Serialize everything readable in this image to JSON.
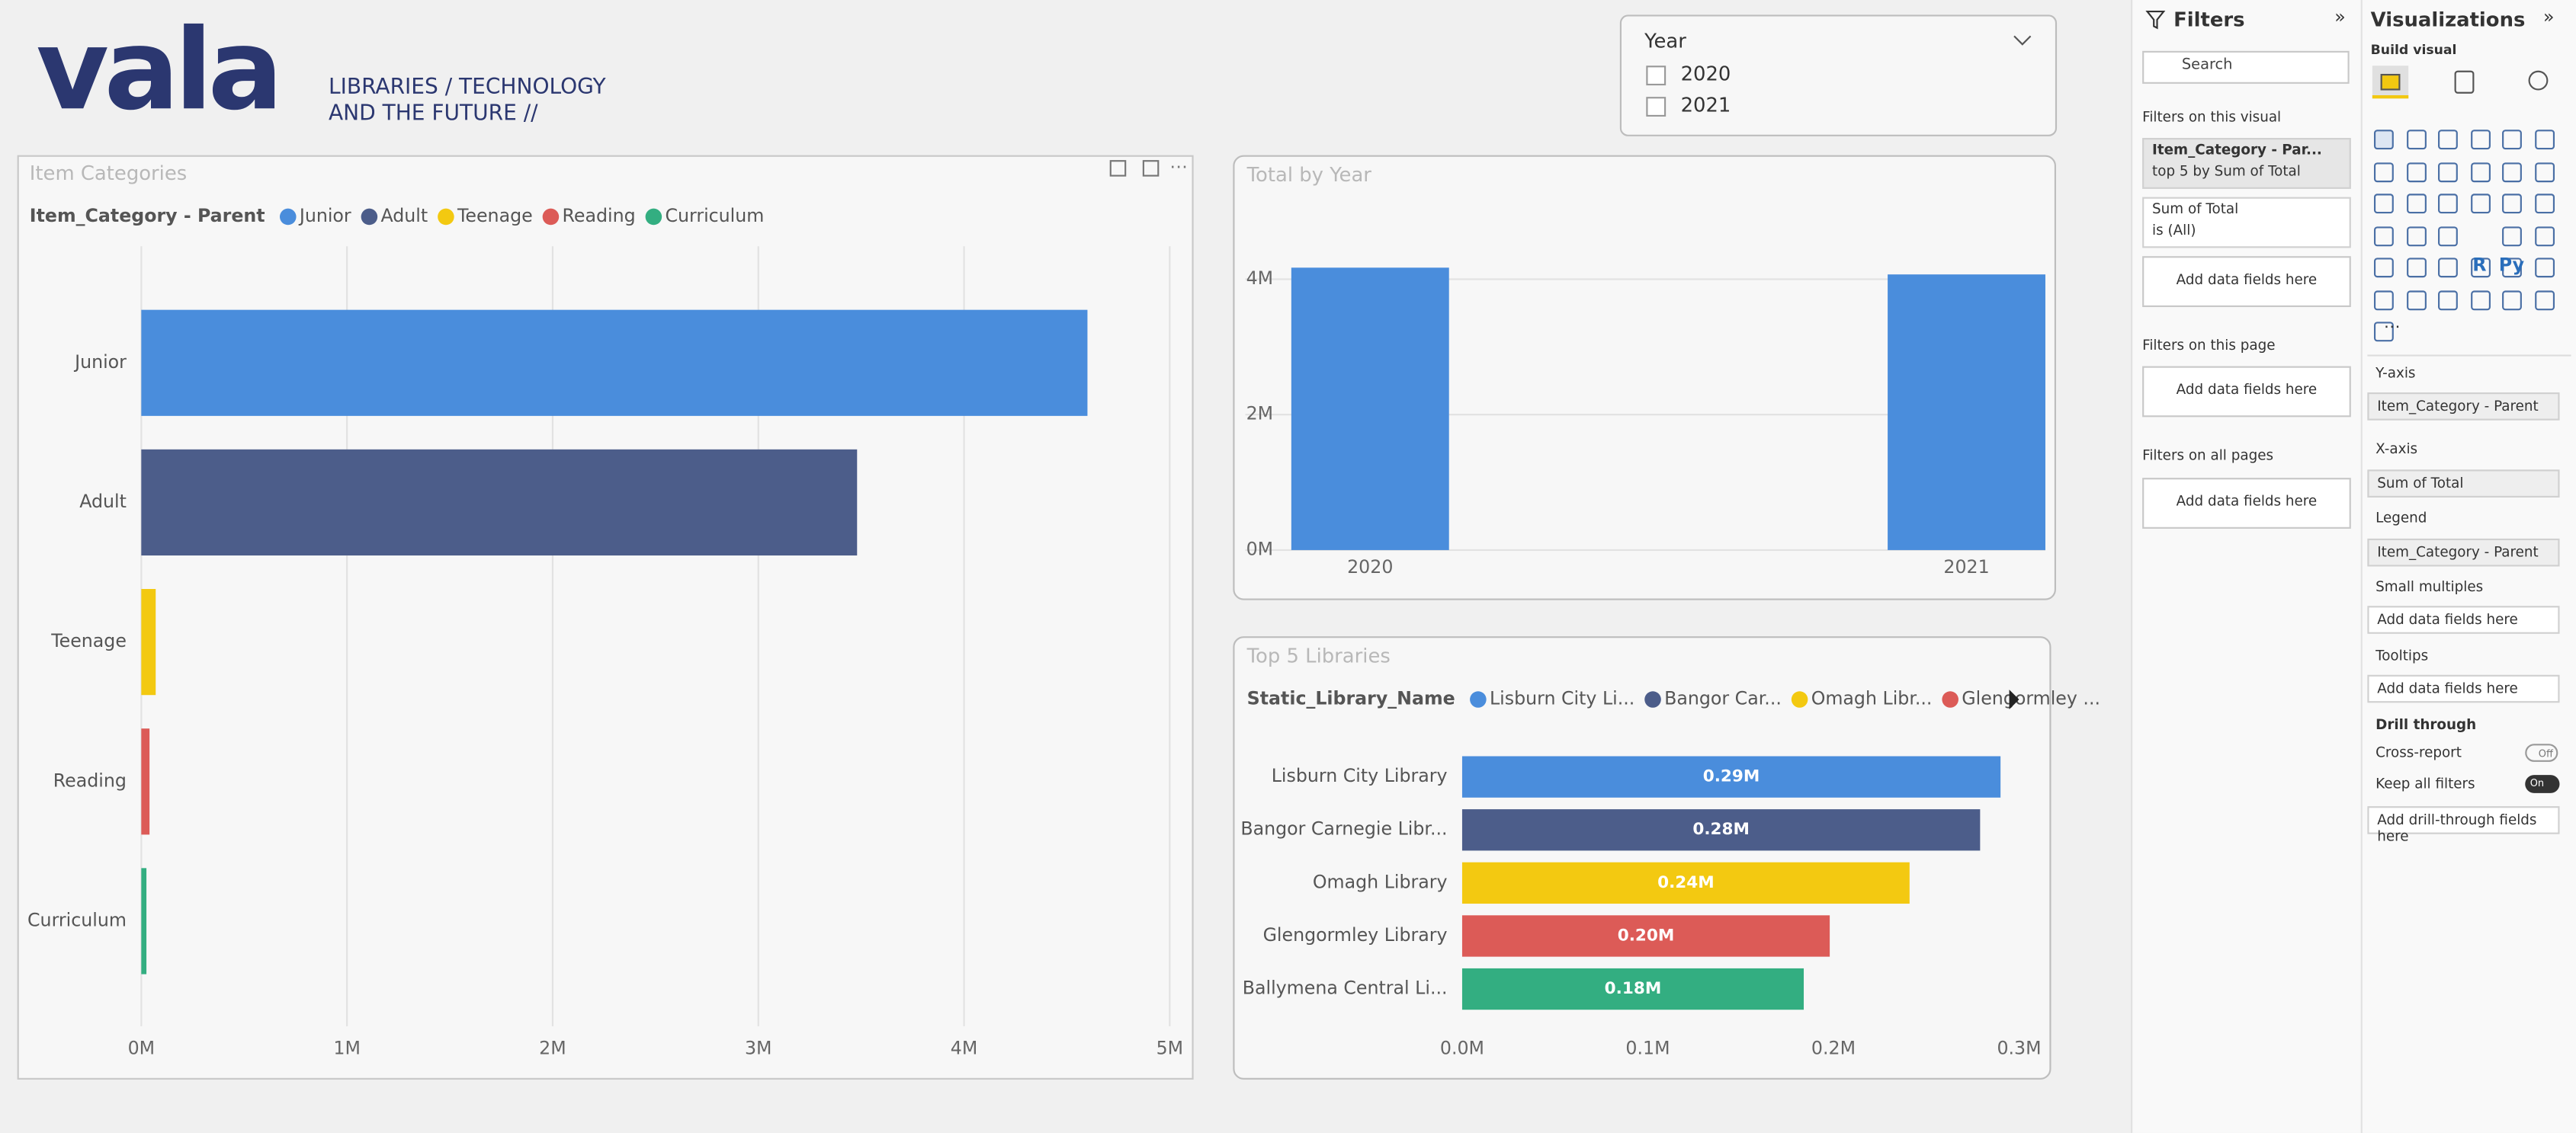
{
  "header": {
    "logo": "vala",
    "tagline_1": "LIBRARIES / TECHNOLOGY",
    "tagline_2": "AND THE FUTURE //"
  },
  "slicer": {
    "title": "Year",
    "options": [
      "2020",
      "2021"
    ]
  },
  "chart_data": [
    {
      "type": "hbar",
      "title": "Item Categories",
      "legend_title": "Item_Category - Parent",
      "categories": [
        "Junior",
        "Adult",
        "Teenage",
        "Reading",
        "Curriculum"
      ],
      "values": [
        4600000,
        3480000,
        70000,
        40000,
        25000
      ],
      "colors": [
        "#4a8ddc",
        "#4c5d8a",
        "#f3c911",
        "#dc5b57",
        "#33ae81"
      ],
      "xlim": [
        0,
        5000000
      ],
      "xticks": [
        {
          "value": 0,
          "label": "0M"
        },
        {
          "value": 1000000,
          "label": "1M"
        },
        {
          "value": 2000000,
          "label": "2M"
        },
        {
          "value": 3000000,
          "label": "3M"
        },
        {
          "value": 4000000,
          "label": "4M"
        },
        {
          "value": 5000000,
          "label": "5M"
        }
      ],
      "grid": true
    },
    {
      "type": "column",
      "title": "Total by Year",
      "categories": [
        "2020",
        "2021"
      ],
      "values": [
        4170000,
        4070000
      ],
      "color": "#4a8ddc",
      "ylim": [
        0,
        4500000
      ],
      "yticks": [
        {
          "value": 0,
          "label": "0M"
        },
        {
          "value": 2000000,
          "label": "2M"
        },
        {
          "value": 4000000,
          "label": "4M"
        }
      ],
      "grid": true
    },
    {
      "type": "hbar",
      "title": "Top 5 Libraries",
      "legend_title": "Static_Library_Name",
      "legend_labels": [
        "Lisburn City Li...",
        "Bangor Car...",
        "Omagh Libr...",
        "Glengormley ..."
      ],
      "categories": [
        "Lisburn City Library",
        "Bangor Carnegie Libr...",
        "Omagh Library",
        "Glengormley Library",
        "Ballymena Central Li..."
      ],
      "values": [
        290000,
        279000,
        241000,
        198000,
        184000
      ],
      "value_labels": [
        "0.29M",
        "0.28M",
        "0.24M",
        "0.20M",
        "0.18M"
      ],
      "colors": [
        "#4a8ddc",
        "#4c5d8a",
        "#f3c911",
        "#dc5b57",
        "#33ae81"
      ],
      "xlim": [
        0,
        300000
      ],
      "xticks": [
        {
          "value": 0,
          "label": "0.0M"
        },
        {
          "value": 100000,
          "label": "0.1M"
        },
        {
          "value": 200000,
          "label": "0.2M"
        },
        {
          "value": 300000,
          "label": "0.3M"
        }
      ],
      "grid": false
    }
  ],
  "filters_pane": {
    "title": "Filters",
    "search": "Search",
    "on_visual": "Filters on this visual",
    "card_1_title": "Item_Category - Par...",
    "card_1_sub": "top 5 by Sum of Total",
    "card_2_title": "Sum of Total",
    "card_2_sub": "is (All)",
    "add_1": "Add data fields here",
    "on_page": "Filters on this page",
    "add_2": "Add data fields here",
    "on_all": "Filters on all pages",
    "add_3": "Add data fields here"
  },
  "visualizations_pane": {
    "title": "Visualizations",
    "build": "Build visual",
    "icon_r": "R",
    "icon_py": "Py",
    "y_axis": "Y-axis",
    "y_field": "Item_Category - Parent",
    "x_axis": "X-axis",
    "x_field": "Sum of Total",
    "legend": "Legend",
    "legend_field": "Item_Category - Parent",
    "small_multiples": "Small multiples",
    "sm_add": "Add data fields here",
    "tooltips": "Tooltips",
    "tt_add": "Add data fields here",
    "drill": "Drill through",
    "cross": "Cross-report",
    "cross_state": "Off",
    "keep": "Keep all filters",
    "keep_state": "On",
    "drill_add": "Add drill-through fields here"
  }
}
